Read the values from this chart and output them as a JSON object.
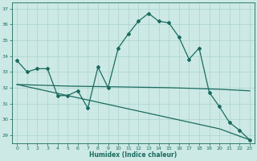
{
  "title": "",
  "xlabel": "Humidex (Indice chaleur)",
  "bg_color": "#cce9e5",
  "grid_color": "#aad3ce",
  "line_color": "#1a6b5e",
  "xlim": [
    -0.5,
    23.5
  ],
  "ylim": [
    28.5,
    37.4
  ],
  "yticks": [
    29,
    30,
    31,
    32,
    33,
    34,
    35,
    36,
    37
  ],
  "xticks": [
    0,
    1,
    2,
    3,
    4,
    5,
    6,
    7,
    8,
    9,
    10,
    11,
    12,
    13,
    14,
    15,
    16,
    17,
    18,
    19,
    20,
    21,
    22,
    23
  ],
  "line1_x": [
    0,
    1,
    2,
    3,
    4,
    5,
    6,
    7,
    8,
    9,
    10,
    11,
    12,
    13,
    14,
    15,
    16,
    17,
    18,
    19,
    20,
    21,
    22,
    23
  ],
  "line1_y": [
    33.7,
    33.0,
    33.2,
    33.2,
    31.5,
    31.5,
    31.8,
    30.7,
    33.3,
    32.0,
    34.5,
    35.4,
    36.2,
    36.7,
    36.2,
    36.1,
    35.2,
    33.8,
    34.5,
    31.7,
    30.8,
    29.8,
    29.3,
    28.7
  ],
  "line2_x": [
    0,
    5,
    10,
    15,
    20,
    23
  ],
  "line2_y": [
    32.2,
    32.1,
    32.05,
    32.0,
    31.9,
    31.8
  ],
  "line3_x": [
    0,
    5,
    10,
    15,
    20,
    23
  ],
  "line3_y": [
    32.2,
    31.5,
    30.8,
    30.1,
    29.4,
    28.7
  ]
}
